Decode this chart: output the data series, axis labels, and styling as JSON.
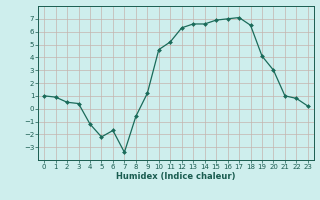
{
  "x": [
    0,
    1,
    2,
    3,
    4,
    5,
    6,
    7,
    8,
    9,
    10,
    11,
    12,
    13,
    14,
    15,
    16,
    17,
    18,
    19,
    20,
    21,
    22,
    23
  ],
  "y": [
    1,
    0.9,
    0.5,
    0.4,
    -1.2,
    -2.2,
    -1.7,
    -3.4,
    -0.6,
    1.2,
    4.6,
    5.2,
    6.3,
    6.6,
    6.6,
    6.9,
    7.0,
    7.1,
    6.5,
    4.1,
    3.0,
    1.0,
    0.8,
    0.2
  ],
  "line_color": "#1a6b5a",
  "marker": "D",
  "marker_size": 2.0,
  "bg_color": "#ceeeed",
  "grid_h_color": "#c4b4ae",
  "grid_v_color": "#c4b4ae",
  "xlabel": "Humidex (Indice chaleur)",
  "ylim": [
    -4,
    8
  ],
  "xlim": [
    -0.5,
    23.5
  ],
  "yticks": [
    -3,
    -2,
    -1,
    0,
    1,
    2,
    3,
    4,
    5,
    6,
    7
  ],
  "xticks": [
    0,
    1,
    2,
    3,
    4,
    5,
    6,
    7,
    8,
    9,
    10,
    11,
    12,
    13,
    14,
    15,
    16,
    17,
    18,
    19,
    20,
    21,
    22,
    23
  ],
  "font_color": "#1a5c50",
  "tick_fontsize": 5.0,
  "xlabel_fontsize": 6.0,
  "linewidth": 0.9,
  "spine_color": "#1a5c50"
}
